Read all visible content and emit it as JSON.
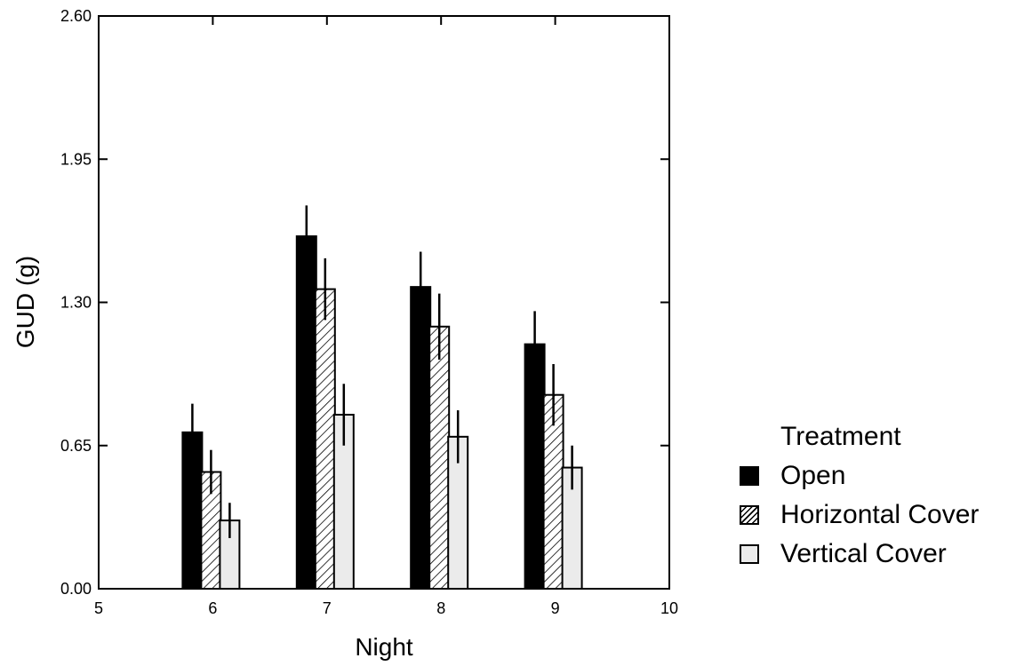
{
  "chart_data": {
    "type": "bar",
    "xlabel": "Night",
    "ylabel": "GUD (g)",
    "xlim": [
      5,
      10
    ],
    "ylim": [
      0.0,
      2.6
    ],
    "x_ticks": [
      "5",
      "6",
      "7",
      "8",
      "9",
      "10"
    ],
    "y_ticks": [
      "0.00",
      "0.65",
      "1.30",
      "1.95",
      "2.60"
    ],
    "categories": [
      6,
      7,
      8,
      9
    ],
    "legend": {
      "title": "Treatment",
      "position": "right"
    },
    "series": [
      {
        "name": "Open",
        "values": [
          0.71,
          1.6,
          1.37,
          1.11
        ],
        "error": [
          0.13,
          0.14,
          0.16,
          0.15
        ],
        "fill": "#000000"
      },
      {
        "name": "Horizontal Cover",
        "values": [
          0.53,
          1.36,
          1.19,
          0.88
        ],
        "error": [
          0.1,
          0.14,
          0.15,
          0.14
        ],
        "fill": "hatch"
      },
      {
        "name": "Vertical Cover",
        "values": [
          0.31,
          0.79,
          0.69,
          0.55
        ],
        "error": [
          0.08,
          0.14,
          0.12,
          0.1
        ],
        "fill": "#ebebeb"
      }
    ]
  }
}
